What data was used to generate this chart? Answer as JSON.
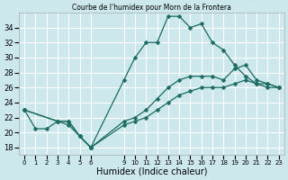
{
  "title": "Courbe de l'humidex pour Morn de la Frontera",
  "xlabel": "Humidex (Indice chaleur)",
  "bg_color": "#cce8ec",
  "grid_color": "#ffffff",
  "line_color": "#1a6b60",
  "xlim": [
    -0.5,
    23.5
  ],
  "ylim": [
    17,
    36
  ],
  "yticks": [
    18,
    20,
    22,
    24,
    26,
    28,
    30,
    32,
    34
  ],
  "x_ticks": [
    0,
    1,
    2,
    3,
    4,
    5,
    6,
    9,
    10,
    11,
    12,
    13,
    14,
    15,
    16,
    17,
    18,
    19,
    20,
    21,
    22,
    23
  ],
  "series1_x": [
    0,
    1,
    2,
    3,
    4,
    5,
    6,
    9,
    10,
    11,
    12,
    13,
    14,
    15,
    16,
    17,
    18,
    19,
    20,
    21,
    22,
    23
  ],
  "series1_y": [
    23,
    20.5,
    20.5,
    21.5,
    21.0,
    19.5,
    18,
    27,
    30,
    32,
    32,
    35.5,
    35.5,
    34,
    34.5,
    32,
    31,
    29,
    27.5,
    26.5,
    26.5,
    26
  ],
  "series2_x": [
    0,
    3,
    4,
    5,
    6,
    9,
    10,
    11,
    12,
    13,
    14,
    15,
    16,
    17,
    18,
    19,
    20,
    21,
    22,
    23
  ],
  "series2_y": [
    23,
    21.5,
    21.5,
    19.5,
    18,
    21.5,
    22,
    23,
    24.5,
    26,
    27,
    27.5,
    27.5,
    27.5,
    27.0,
    28.5,
    29,
    27,
    26.5,
    26
  ],
  "series3_x": [
    0,
    3,
    4,
    5,
    6,
    9,
    10,
    11,
    12,
    13,
    14,
    15,
    16,
    17,
    18,
    19,
    20,
    21,
    22,
    23
  ],
  "series3_y": [
    23,
    21.5,
    21.5,
    19.5,
    18,
    21.0,
    21.5,
    22,
    23,
    24,
    25,
    25.5,
    26,
    26,
    26,
    26.5,
    27,
    26.5,
    26,
    26
  ]
}
